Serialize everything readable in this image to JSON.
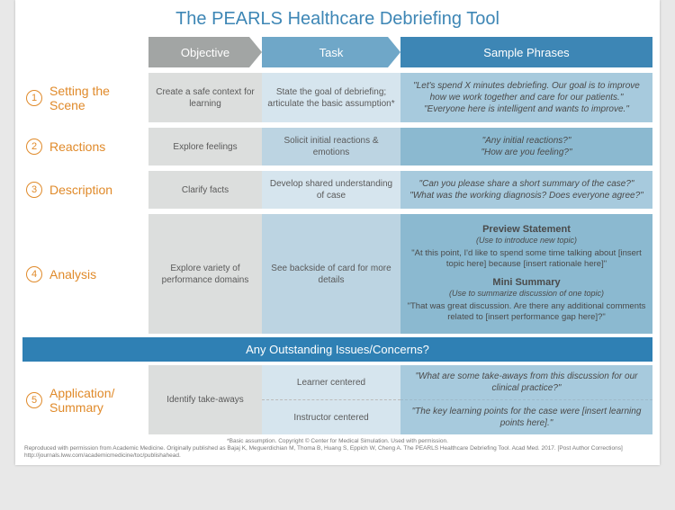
{
  "title": "The PEARLS Healthcare Debriefing Tool",
  "colors": {
    "title": "#3d86b5",
    "accent_orange": "#e08a2a",
    "header_obj_bg": "#a2a5a4",
    "header_task_bg": "#6fa7c8",
    "header_samp_bg": "#3d86b5",
    "obj_cell_bg": "#dcdedd",
    "task_cell_bg": "#d6e5ee",
    "samp_cell_bg": "#a7cadd",
    "divider_bg": "#2f80b4",
    "task_cell_darker": "#bcd4e2",
    "samp_cell_darker": "#8bb9d0"
  },
  "columns": {
    "objective": "Objective",
    "task": "Task",
    "sample": "Sample Phrases"
  },
  "rows": [
    {
      "num": "1",
      "label": "Setting the Scene",
      "objective": "Create a safe context for learning",
      "task": "State the goal of debriefing; articulate the basic assumption*",
      "sample": "\"Let's spend X minutes debriefing. Our goal is to improve how we work together and care for our patients.\"\n\"Everyone here is intelligent and wants to improve.\""
    },
    {
      "num": "2",
      "label": "Reactions",
      "objective": "Explore feelings",
      "task": "Solicit initial reactions & emotions",
      "sample": "\"Any initial reactions?\"\n\"How are you feeling?\""
    },
    {
      "num": "3",
      "label": "Description",
      "objective": "Clarify facts",
      "task": "Develop shared understanding of case",
      "sample": "\"Can you please share a short summary of the case?\"\n\"What was the working diagnosis? Does everyone agree?\""
    },
    {
      "num": "4",
      "label": "Analysis",
      "objective": "Explore variety of performance domains",
      "task": "See backside of card for more details",
      "sample_analysis": {
        "preview_head": "Preview Statement",
        "preview_sub": "(Use to introduce new topic)",
        "preview_q": "\"At this point, I'd like to spend some time talking about [insert topic here] because [insert rationale here]\"",
        "mini_head": "Mini Summary",
        "mini_sub": "(Use to summarize discussion of one topic)",
        "mini_q": "\"That was great discussion. Are there any additional comments related to [insert performance gap here]?\""
      }
    }
  ],
  "divider": "Any Outstanding Issues/Concerns?",
  "row5": {
    "num": "5",
    "label": "Application/ Summary",
    "objective": "Identify take-aways",
    "task_a": "Learner centered",
    "task_b": "Instructor centered",
    "sample_a": "\"What are some take-aways from this discussion for our clinical practice?\"",
    "sample_b": "\"The key learning points for the case were [insert learning points here].\""
  },
  "footer_line1": "*Basic assumption. Copyright © Center for Medical Simulation. Used with permission.",
  "footer_line2": "Reproduced with permission from Academic Medicine. Originally published as Bajaj K, Meguerdichian M, Thoma B, Huang S, Eppich W, Cheng A. The PEARLS Healthcare Debriefing Tool. Acad Med. 2017. [Post Author Corrections] http://journals.lww.com/academicmedicine/toc/publishahead."
}
